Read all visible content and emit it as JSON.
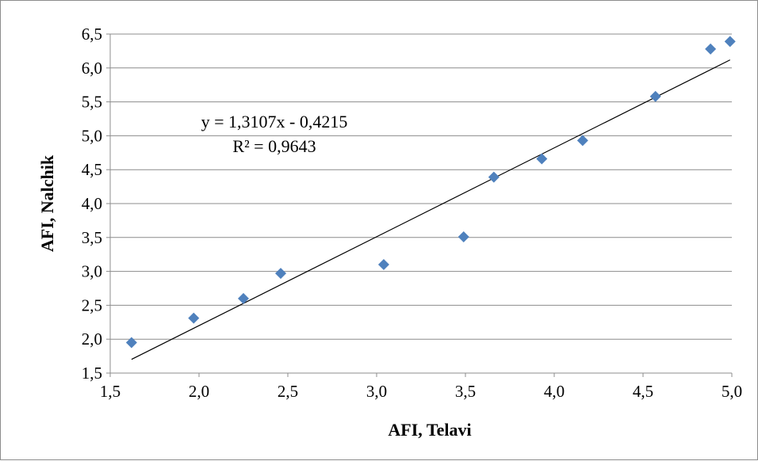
{
  "chart_data": {
    "type": "scatter",
    "title": "",
    "xlabel": "AFI, Telavi",
    "ylabel": "AFI, Nalchik",
    "xlim": [
      1.5,
      5.0
    ],
    "ylim": [
      1.5,
      6.5
    ],
    "xticks": [
      1.5,
      2.0,
      2.5,
      3.0,
      3.5,
      4.0,
      4.5,
      5.0
    ],
    "yticks": [
      1.5,
      2.0,
      2.5,
      3.0,
      3.5,
      4.0,
      4.5,
      5.0,
      5.5,
      6.0,
      6.5
    ],
    "xtick_labels": [
      "1,5",
      "2,0",
      "2,5",
      "3,0",
      "3,5",
      "4,0",
      "4,5",
      "5,0"
    ],
    "ytick_labels": [
      "1,5",
      "2,0",
      "2,5",
      "3,0",
      "3,5",
      "4,0",
      "4,5",
      "5,0",
      "5,5",
      "6,0",
      "6,5"
    ],
    "grid": "horizontal",
    "marker": "diamond",
    "marker_color": "#4f81bd",
    "line_color": "#000000",
    "x": [
      1.62,
      1.97,
      2.25,
      2.46,
      3.04,
      3.49,
      3.66,
      3.93,
      4.16,
      4.57,
      4.88,
      4.99
    ],
    "y": [
      1.95,
      2.31,
      2.6,
      2.97,
      3.1,
      3.51,
      4.39,
      4.66,
      4.93,
      5.58,
      6.28,
      6.39
    ],
    "trendline": {
      "slope": 1.3107,
      "intercept": -0.4215,
      "x_range": [
        1.62,
        4.99
      ],
      "equation": "y = 1,3107x - 0,4215",
      "r2": "R² = 0,9643"
    }
  }
}
